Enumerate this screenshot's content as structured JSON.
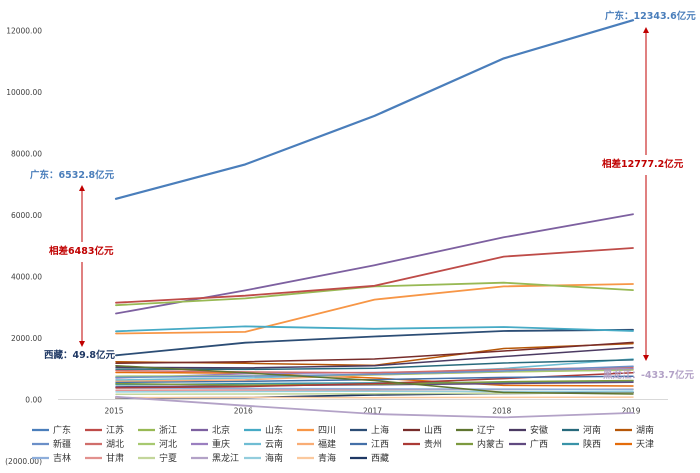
{
  "chart_data": {
    "type": "line",
    "title": "",
    "xlabel": "",
    "ylabel": "",
    "x": [
      "2015",
      "2016",
      "2017",
      "2018",
      "2019"
    ],
    "ylim": [
      -2000,
      13000
    ],
    "yticks": [
      -2000,
      0,
      2000,
      4000,
      6000,
      8000,
      10000,
      12000
    ],
    "ytick_labels": [
      "(2000.00)",
      "0.00",
      "2000.00",
      "4000.00",
      "6000.00",
      "8000.00",
      "10000.00",
      "12000.00"
    ],
    "grid": false,
    "legend_position": "bottom",
    "series": [
      {
        "name": "广东",
        "color": "#4a7ebb",
        "width": 2.2,
        "values": [
          6532.8,
          7650,
          9230,
          11100,
          12343.6
        ]
      },
      {
        "name": "江苏",
        "color": "#be4b48",
        "width": 1.8,
        "values": [
          3150,
          3380,
          3700,
          4650,
          4930
        ]
      },
      {
        "name": "浙江",
        "color": "#98b954",
        "width": 1.8,
        "values": [
          3070,
          3290,
          3680,
          3800,
          3560
        ]
      },
      {
        "name": "北京",
        "color": "#7d60a0",
        "width": 1.8,
        "values": [
          2800,
          3550,
          4370,
          5280,
          6030
        ]
      },
      {
        "name": "山东",
        "color": "#46aac5",
        "width": 1.8,
        "values": [
          2220,
          2380,
          2300,
          2360,
          2230
        ]
      },
      {
        "name": "四川",
        "color": "#f79646",
        "width": 1.8,
        "values": [
          2150,
          2200,
          3250,
          3680,
          3760
        ]
      },
      {
        "name": "上海",
        "color": "#2c4d75",
        "width": 1.8,
        "values": [
          1440,
          1850,
          2050,
          2230,
          2270
        ]
      },
      {
        "name": "山西",
        "color": "#772c2a",
        "width": 1.5,
        "values": [
          1180,
          1230,
          1320,
          1580,
          1860
        ]
      },
      {
        "name": "辽宁",
        "color": "#5f7530",
        "width": 1.5,
        "values": [
          1100,
          870,
          620,
          230,
          180
        ]
      },
      {
        "name": "安徽",
        "color": "#4b3a62",
        "width": 1.5,
        "values": [
          1050,
          1030,
          1100,
          1400,
          1690
        ]
      },
      {
        "name": "河南",
        "color": "#276a7c",
        "width": 1.5,
        "values": [
          990,
          980,
          1020,
          1190,
          1290
        ]
      },
      {
        "name": "湖南",
        "color": "#b65708",
        "width": 1.5,
        "values": [
          1230,
          1180,
          1110,
          1660,
          1820
        ]
      },
      {
        "name": "新疆",
        "color": "#6b8fc8",
        "width": 1.5,
        "values": [
          720,
          760,
          820,
          930,
          1080
        ]
      },
      {
        "name": "湖北",
        "color": "#d06e6b",
        "width": 1.5,
        "values": [
          940,
          900,
          870,
          980,
          1050
        ]
      },
      {
        "name": "河北",
        "color": "#a7c970",
        "width": 1.5,
        "values": [
          760,
          770,
          800,
          900,
          960
        ]
      },
      {
        "name": "重庆",
        "color": "#9b7fc0",
        "width": 1.5,
        "values": [
          700,
          840,
          880,
          930,
          1000
        ]
      },
      {
        "name": "云南",
        "color": "#6fbdd3",
        "width": 1.5,
        "values": [
          640,
          700,
          820,
          1010,
          1320
        ]
      },
      {
        "name": "福建",
        "color": "#f9ad75",
        "width": 1.5,
        "values": [
          600,
          640,
          800,
          900,
          970
        ]
      },
      {
        "name": "江西",
        "color": "#4470a8",
        "width": 1.5,
        "values": [
          560,
          590,
          650,
          720,
          760
        ]
      },
      {
        "name": "贵州",
        "color": "#ab3a36",
        "width": 1.5,
        "values": [
          380,
          420,
          520,
          680,
          870
        ]
      },
      {
        "name": "内蒙古",
        "color": "#7d9a3f",
        "width": 1.5,
        "values": [
          520,
          470,
          500,
          580,
          620
        ]
      },
      {
        "name": "广西",
        "color": "#604a80",
        "width": 1.5,
        "values": [
          410,
          450,
          480,
          520,
          560
        ]
      },
      {
        "name": "陕西",
        "color": "#3993a8",
        "width": 1.5,
        "values": [
          480,
          520,
          540,
          560,
          600
        ]
      },
      {
        "name": "天津",
        "color": "#e46c0a",
        "width": 1.5,
        "values": [
          880,
          860,
          700,
          460,
          440
        ]
      },
      {
        "name": "吉林",
        "color": "#8eaedb",
        "width": 1.5,
        "values": [
          380,
          360,
          350,
          340,
          330
        ]
      },
      {
        "name": "甘肃",
        "color": "#e2918e",
        "width": 1.5,
        "values": [
          300,
          310,
          320,
          330,
          340
        ]
      },
      {
        "name": "宁夏",
        "color": "#c3d69b",
        "width": 1.5,
        "values": [
          170,
          180,
          190,
          200,
          210
        ]
      },
      {
        "name": "黑龙江",
        "color": "#b3a2c7",
        "width": 1.8,
        "values": [
          90,
          -200,
          -470,
          -580,
          -433.7
        ]
      },
      {
        "name": "海南",
        "color": "#93cddd",
        "width": 1.5,
        "values": [
          250,
          260,
          270,
          260,
          270
        ]
      },
      {
        "name": "青海",
        "color": "#fbc99e",
        "width": 1.5,
        "values": [
          60,
          70,
          60,
          70,
          80
        ]
      },
      {
        "name": "西藏",
        "color": "#1f3864",
        "width": 1.8,
        "values": [
          49.8,
          60,
          150,
          200,
          230
        ]
      }
    ],
    "annotations": {
      "gd_start": {
        "text": "广东：6532.8亿元",
        "color": "#4a7ebb"
      },
      "gd_end": {
        "text": "广东：12343.6亿元",
        "color": "#4a7ebb"
      },
      "xz_start": {
        "text": "西藏：49.8亿元",
        "color": "#1f3864"
      },
      "hlj_end": {
        "text": "黑龙江：-433.7亿元",
        "color": "#b3a2c7"
      },
      "diff_left": {
        "text": "相差6483亿元",
        "color": "#c00000"
      },
      "diff_right": {
        "text": "相差12777.2亿元",
        "color": "#c00000"
      }
    }
  }
}
